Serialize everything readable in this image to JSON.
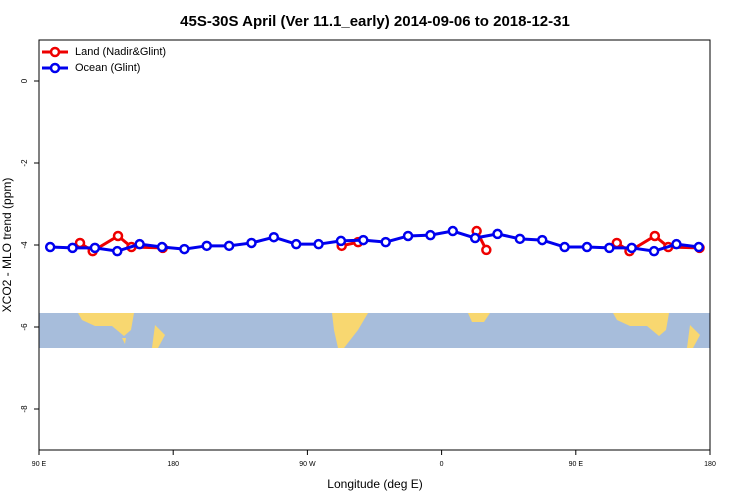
{
  "chart_data": {
    "type": "line",
    "title": "45S-30S April (Ver 11.1_early)   2014-09-06 to 2018-12-31",
    "xlabel": "Longitude (deg E)",
    "ylabel": "XCO2 - MLO trend (ppm)",
    "xlim": [
      90,
      540
    ],
    "ylim": [
      -9,
      1
    ],
    "xticks": [
      {
        "value": 90,
        "label": "90 E"
      },
      180,
      {
        "value": 270,
        "label": "90 W"
      },
      {
        "value": 360,
        "label": "0"
      },
      {
        "value": 450,
        "label": "90 E"
      },
      {
        "value": 540,
        "label": "180"
      }
    ],
    "yticks": [
      0,
      -2,
      -4,
      -6,
      -8
    ],
    "legend": "top-left",
    "series": [
      {
        "name": "Land (Nadir&Glint)",
        "color": "#ee0000",
        "x": [
          117.5,
          126,
          143,
          152,
          173,
          null,
          293,
          304,
          null,
          383.5,
          390,
          null,
          477.5,
          486,
          503,
          512,
          533
        ],
        "values": [
          -3.95,
          -4.15,
          -3.78,
          -4.05,
          -4.07,
          null,
          -4.02,
          -3.93,
          null,
          -3.66,
          -4.12,
          null,
          -3.95,
          -4.15,
          -3.78,
          -4.05,
          -4.07
        ]
      },
      {
        "name": "Ocean (Glint)",
        "color": "#0000ee",
        "x": [
          97.5,
          112.5,
          127.5,
          142.5,
          157.5,
          172.5,
          187.5,
          202.5,
          217.5,
          232.5,
          247.5,
          262.5,
          277.5,
          292.5,
          307.5,
          322.5,
          337.5,
          352.5,
          367.5,
          382.5,
          397.5,
          412.5,
          427.5,
          442.5,
          457.5,
          472.5,
          487.5,
          502.5,
          517.5,
          532.5
        ],
        "values": [
          -4.05,
          -4.07,
          -4.07,
          -4.15,
          -3.98,
          -4.05,
          -4.1,
          -4.02,
          -4.02,
          -3.95,
          -3.81,
          -3.98,
          -3.98,
          -3.9,
          -3.88,
          -3.93,
          -3.78,
          -3.76,
          -3.66,
          -3.83,
          -3.73,
          -3.85,
          -3.88,
          -4.05,
          -4.05,
          -4.07,
          -4.07,
          -4.15,
          -3.98,
          -4.05
        ]
      }
    ]
  }
}
